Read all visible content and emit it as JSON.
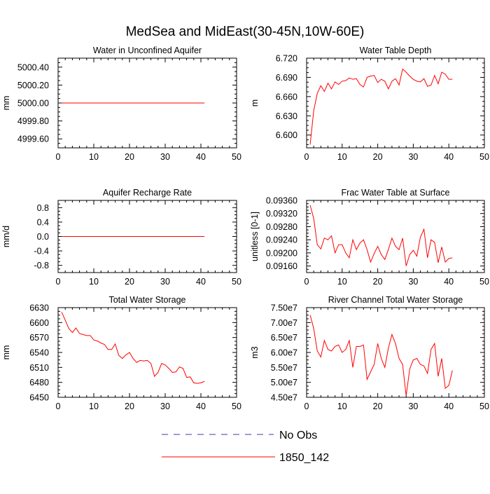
{
  "figure": {
    "title": "MedSea and MidEast(30-45N,10W-60E)",
    "series_color": "#ff0000",
    "obs_color": "#3a3aa8"
  },
  "legend": {
    "obs_label": "No Obs",
    "model_label": "1850_142"
  },
  "chart_data": [
    {
      "type": "line",
      "title": "Water in Unconfined Aquifer",
      "ylabel": "mm",
      "xlabel": "",
      "xlim": [
        0,
        50
      ],
      "ylim": [
        4999.5,
        5000.5
      ],
      "xticks": [
        0,
        10,
        20,
        30,
        40,
        50
      ],
      "yticks": [
        4999.6,
        4999.8,
        5000.0,
        5000.2,
        5000.4
      ],
      "ytick_labels": [
        "4999.60",
        "4999.80",
        "5000.00",
        "5000.20",
        "5000.40"
      ],
      "series": [
        {
          "name": "1850_142",
          "x": [
            1,
            41
          ],
          "values": [
            5000.0,
            5000.0
          ]
        }
      ]
    },
    {
      "type": "line",
      "title": "Water Table Depth",
      "ylabel": "m",
      "xlabel": "",
      "xlim": [
        0,
        50
      ],
      "ylim": [
        6.58,
        6.72
      ],
      "xticks": [
        0,
        10,
        20,
        30,
        40,
        50
      ],
      "yticks": [
        6.6,
        6.63,
        6.66,
        6.69,
        6.72
      ],
      "ytick_labels": [
        "6.600",
        "6.630",
        "6.660",
        "6.690",
        "6.720"
      ],
      "series": [
        {
          "name": "1850_142",
          "x": [
            1,
            2,
            3,
            4,
            5,
            6,
            7,
            8,
            9,
            10,
            11,
            12,
            13,
            14,
            15,
            16,
            17,
            18,
            19,
            20,
            21,
            22,
            23,
            24,
            25,
            26,
            27,
            28,
            29,
            30,
            31,
            32,
            33,
            34,
            35,
            36,
            37,
            38,
            39,
            40,
            41
          ],
          "values": [
            6.585,
            6.638,
            6.665,
            6.677,
            6.668,
            6.681,
            6.672,
            6.683,
            6.679,
            6.684,
            6.685,
            6.689,
            6.687,
            6.688,
            6.679,
            6.675,
            6.69,
            6.692,
            6.693,
            6.682,
            6.687,
            6.684,
            6.672,
            6.684,
            6.688,
            6.678,
            6.703,
            6.698,
            6.692,
            6.687,
            6.684,
            6.683,
            6.688,
            6.676,
            6.678,
            6.693,
            6.68,
            6.698,
            6.695,
            6.687,
            6.687
          ]
        }
      ]
    },
    {
      "type": "line",
      "title": "Aquifer Recharge Rate",
      "ylabel": "mm/d",
      "xlabel": "",
      "xlim": [
        0,
        50
      ],
      "ylim": [
        -1.0,
        1.0
      ],
      "xticks": [
        0,
        10,
        20,
        30,
        40,
        50
      ],
      "yticks": [
        -0.8,
        -0.4,
        0.0,
        0.4,
        0.8
      ],
      "ytick_labels": [
        "-0.8",
        "-0.4",
        "0.0",
        "0.4",
        "0.8"
      ],
      "series": [
        {
          "name": "1850_142",
          "x": [
            1,
            41
          ],
          "values": [
            0.0,
            0.0
          ]
        }
      ]
    },
    {
      "type": "line",
      "title": "Frac Water Table at Surface",
      "ylabel": "unitless [0-1]",
      "xlabel": "",
      "xlim": [
        0,
        50
      ],
      "ylim": [
        0.0914,
        0.0936
      ],
      "xticks": [
        0,
        10,
        20,
        30,
        40,
        50
      ],
      "yticks": [
        0.0916,
        0.092,
        0.0924,
        0.0928,
        0.0932,
        0.0936
      ],
      "ytick_labels": [
        "0.09160",
        "0.09200",
        "0.09240",
        "0.09280",
        "0.09320",
        "0.09360"
      ],
      "series": [
        {
          "name": "1850_142",
          "x": [
            1,
            2,
            3,
            4,
            5,
            6,
            7,
            8,
            9,
            10,
            11,
            12,
            13,
            14,
            15,
            16,
            17,
            18,
            19,
            20,
            21,
            22,
            23,
            24,
            25,
            26,
            27,
            28,
            29,
            30,
            31,
            32,
            33,
            34,
            35,
            36,
            37,
            38,
            39,
            40,
            41
          ],
          "values": [
            0.09345,
            0.09305,
            0.09225,
            0.09212,
            0.09245,
            0.0924,
            0.09252,
            0.092,
            0.09225,
            0.09225,
            0.092,
            0.09185,
            0.0924,
            0.0921,
            0.0923,
            0.0924,
            0.0921,
            0.09172,
            0.09198,
            0.0922,
            0.09195,
            0.0918,
            0.0921,
            0.09245,
            0.0922,
            0.0921,
            0.09245,
            0.0916,
            0.09195,
            0.09208,
            0.0919,
            0.09248,
            0.09272,
            0.09185,
            0.0924,
            0.09232,
            0.0917,
            0.09218,
            0.09172,
            0.09183,
            0.09185
          ]
        }
      ]
    },
    {
      "type": "line",
      "title": "Total Water Storage",
      "ylabel": "mm",
      "xlabel": "",
      "xlim": [
        0,
        50
      ],
      "ylim": [
        6450,
        6630
      ],
      "xticks": [
        0,
        10,
        20,
        30,
        40,
        50
      ],
      "yticks": [
        6450,
        6480,
        6510,
        6540,
        6570,
        6600,
        6630
      ],
      "ytick_labels": [
        "6450",
        "6480",
        "6510",
        "6540",
        "6570",
        "6600",
        "6630"
      ],
      "series": [
        {
          "name": "1850_142",
          "x": [
            1,
            2,
            3,
            4,
            5,
            6,
            7,
            8,
            9,
            10,
            11,
            12,
            13,
            14,
            15,
            16,
            17,
            18,
            19,
            20,
            21,
            22,
            23,
            24,
            25,
            26,
            27,
            28,
            29,
            30,
            31,
            32,
            33,
            34,
            35,
            36,
            37,
            38,
            39,
            40,
            41
          ],
          "values": [
            6621,
            6605,
            6588,
            6580,
            6589,
            6578,
            6576,
            6574,
            6574,
            6565,
            6563,
            6559,
            6556,
            6546,
            6546,
            6557,
            6534,
            6528,
            6535,
            6540,
            6528,
            6520,
            6524,
            6523,
            6524,
            6518,
            6492,
            6500,
            6518,
            6515,
            6508,
            6500,
            6501,
            6511,
            6508,
            6490,
            6491,
            6479,
            6478,
            6479,
            6482
          ]
        }
      ]
    },
    {
      "type": "line",
      "title": "River Channel Total Water Storage",
      "ylabel": "m3",
      "xlabel": "",
      "xlim": [
        0,
        50
      ],
      "ylim": [
        45000000,
        75000000
      ],
      "xticks": [
        0,
        10,
        20,
        30,
        40,
        50
      ],
      "yticks": [
        45000000,
        50000000,
        55000000,
        60000000,
        65000000,
        70000000,
        75000000
      ],
      "ytick_labels": [
        "4.50e7",
        "5.00e7",
        "5.50e7",
        "6.00e7",
        "6.50e7",
        "7.00e7",
        "7.50e7"
      ],
      "series": [
        {
          "name": "1850_142",
          "x": [
            1,
            2,
            3,
            4,
            5,
            6,
            7,
            8,
            9,
            10,
            11,
            12,
            13,
            14,
            15,
            16,
            17,
            18,
            19,
            20,
            21,
            22,
            23,
            24,
            25,
            26,
            27,
            28,
            29,
            30,
            31,
            32,
            33,
            34,
            35,
            36,
            37,
            38,
            39,
            40,
            41
          ],
          "values": [
            72500000,
            68000000,
            60500000,
            58500000,
            64000000,
            61000000,
            60500000,
            62000000,
            62500000,
            60000000,
            61000000,
            64000000,
            55000000,
            62000000,
            62000000,
            62500000,
            51000000,
            53500000,
            56000000,
            63000000,
            58000000,
            55000000,
            61500000,
            66000000,
            63000000,
            58000000,
            56000000,
            45500000,
            54500000,
            57500000,
            58000000,
            56000000,
            55500000,
            53000000,
            61000000,
            63000000,
            52000000,
            58000000,
            48000000,
            49000000,
            54000000
          ]
        }
      ]
    }
  ]
}
